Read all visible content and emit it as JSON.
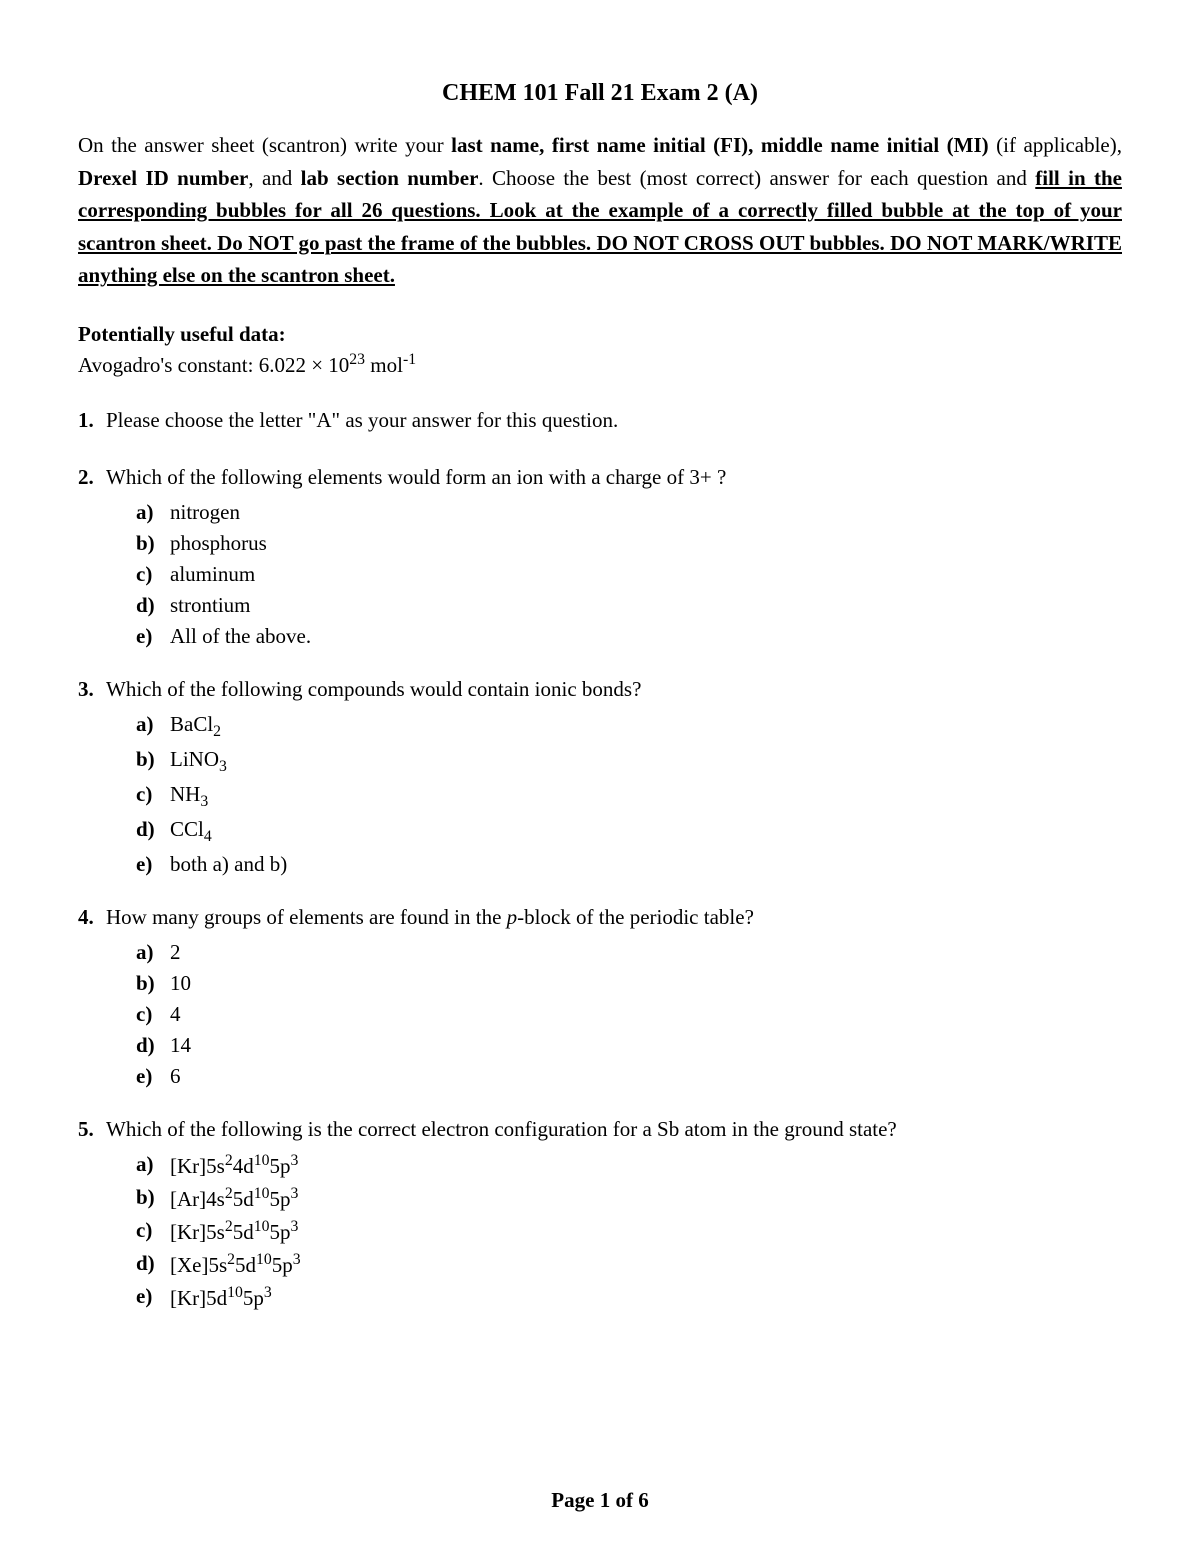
{
  "title": "CHEM 101 Fall 21 Exam 2 (A)",
  "instructions": {
    "line1_pre": "On the answer sheet (scantron) write your ",
    "line1_bold1": "last name, first name initial (FI), middle name initial (MI)",
    "line1_mid": " (if applicable), ",
    "line1_bold2": "Drexel ID number",
    "line1_mid2": ", and ",
    "line1_bold3": "lab section number",
    "line1_post": ". Choose the best (most correct) answer for each question and ",
    "underline_text": "fill in the corresponding bubbles for all 26 questions. Look at the example of a correctly filled bubble at the top of your scantron sheet. Do NOT go past the frame of the bubbles. DO NOT CROSS OUT bubbles. DO NOT MARK/WRITE anything else on the scantron sheet."
  },
  "useful_data": {
    "label": "Potentially useful data:",
    "constant_pre": "Avogadro's constant:  6.022 × 10",
    "constant_exp": "23",
    "constant_post": " mol",
    "constant_exp2": "-1"
  },
  "questions": [
    {
      "num": "1.",
      "text": "Please choose the letter \"A\" as your answer for this question.",
      "options": []
    },
    {
      "num": "2.",
      "text": "Which of the following elements would form an ion with a charge of  3+  ?",
      "options": [
        {
          "letter": "a)",
          "text": "nitrogen"
        },
        {
          "letter": "b)",
          "text": "phosphorus"
        },
        {
          "letter": "c)",
          "text": "aluminum"
        },
        {
          "letter": "d)",
          "text": "strontium"
        },
        {
          "letter": "e)",
          "text": "All of the above."
        }
      ]
    },
    {
      "num": "3.",
      "text": "Which of the following compounds would contain ionic bonds?",
      "options": [
        {
          "letter": "a)",
          "html": "BaCl<sub>2</sub>"
        },
        {
          "letter": "b)",
          "html": "LiNO<sub>3</sub>"
        },
        {
          "letter": "c)",
          "html": "NH<sub>3</sub>"
        },
        {
          "letter": "d)",
          "html": "CCl<sub>4</sub>"
        },
        {
          "letter": "e)",
          "text": "both a) and b)"
        }
      ]
    },
    {
      "num": "4.",
      "html_text": "How many groups of elements are found in the <span class=\"italic\">p</span>-block of the periodic table?",
      "options": [
        {
          "letter": "a)",
          "text": "2"
        },
        {
          "letter": "b)",
          "text": "10"
        },
        {
          "letter": "c)",
          "text": "4"
        },
        {
          "letter": "d)",
          "text": "14"
        },
        {
          "letter": "e)",
          "text": "6"
        }
      ]
    },
    {
      "num": "5.",
      "text": "Which of the following is the correct electron configuration for a Sb atom in the ground state?",
      "options": [
        {
          "letter": "a)",
          "html": "[Kr]5s<sup>2</sup>4d<sup>10</sup>5p<sup>3</sup>"
        },
        {
          "letter": "b)",
          "html": "[Ar]4s<sup>2</sup>5d<sup>10</sup>5p<sup>3</sup>"
        },
        {
          "letter": "c)",
          "html": "[Kr]5s<sup>2</sup>5d<sup>10</sup>5p<sup>3</sup>"
        },
        {
          "letter": "d)",
          "html": "[Xe]5s<sup>2</sup>5d<sup>10</sup>5p<sup>3</sup>"
        },
        {
          "letter": "e)",
          "html": "[Kr]5d<sup>10</sup>5p<sup>3</sup>"
        }
      ]
    }
  ],
  "footer": "Page 1 of 6"
}
